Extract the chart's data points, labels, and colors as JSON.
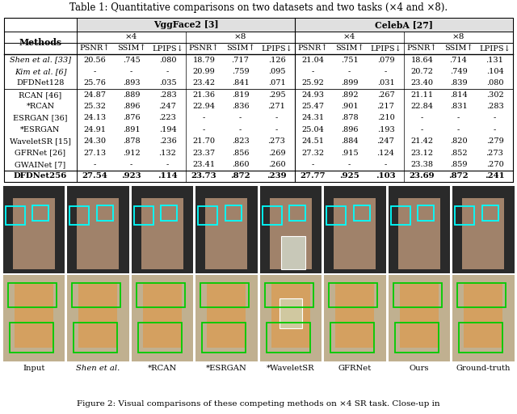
{
  "title": "Table 1: Quantitative comparisons on two datasets and two tasks (×4 and ×8).",
  "vggface2_label": "VggFace2 [3]",
  "celeba_label": "CelebA [27]",
  "x4_label": "×4",
  "x8_label": "×8",
  "metric_headers": [
    "PSNR↑",
    "SSIM↑",
    "LPIPS↓"
  ],
  "methods_label": "Methods",
  "rows": [
    {
      "method": "Shen et al. [33]",
      "italic": true,
      "vgg_x4": [
        "20.56",
        ".745",
        ".080"
      ],
      "vgg_x8": [
        "18.79",
        ".717",
        ".126"
      ],
      "celeb_x4": [
        "21.04",
        ".751",
        ".079"
      ],
      "celeb_x8": [
        "18.64",
        ".714",
        ".131"
      ],
      "bold": false,
      "group": 1
    },
    {
      "method": "Kim et al. [6]",
      "italic": true,
      "vgg_x4": [
        "-",
        "-",
        "-"
      ],
      "vgg_x8": [
        "20.99",
        ".759",
        ".095"
      ],
      "celeb_x4": [
        "-",
        "-",
        "-"
      ],
      "celeb_x8": [
        "20.72",
        ".749",
        ".104"
      ],
      "bold": false,
      "group": 1
    },
    {
      "method": "DFDNet128",
      "italic": false,
      "vgg_x4": [
        "25.76",
        ".893",
        ".035"
      ],
      "vgg_x8": [
        "23.42",
        ".841",
        ".071"
      ],
      "celeb_x4": [
        "25.92",
        ".899",
        ".031"
      ],
      "celeb_x8": [
        "23.40",
        ".839",
        ".080"
      ],
      "bold": false,
      "group": 1
    },
    {
      "method": "RCAN [46]",
      "italic": false,
      "vgg_x4": [
        "24.87",
        ".889",
        ".283"
      ],
      "vgg_x8": [
        "21.36",
        ".819",
        ".295"
      ],
      "celeb_x4": [
        "24.93",
        ".892",
        ".267"
      ],
      "celeb_x8": [
        "21.11",
        ".814",
        ".302"
      ],
      "bold": false,
      "group": 2
    },
    {
      "method": "*RCAN",
      "italic": false,
      "vgg_x4": [
        "25.32",
        ".896",
        ".247"
      ],
      "vgg_x8": [
        "22.94",
        ".836",
        ".271"
      ],
      "celeb_x4": [
        "25.47",
        ".901",
        ".217"
      ],
      "celeb_x8": [
        "22.84",
        ".831",
        ".283"
      ],
      "bold": false,
      "group": 2
    },
    {
      "method": "ESRGAN [36]",
      "italic": false,
      "vgg_x4": [
        "24.13",
        ".876",
        ".223"
      ],
      "vgg_x8": [
        "-",
        "-",
        "-"
      ],
      "celeb_x4": [
        "24.31",
        ".878",
        ".210"
      ],
      "celeb_x8": [
        "-",
        "-",
        "-"
      ],
      "bold": false,
      "group": 2
    },
    {
      "method": "*ESRGAN",
      "italic": false,
      "vgg_x4": [
        "24.91",
        ".891",
        ".194"
      ],
      "vgg_x8": [
        "-",
        "-",
        "-"
      ],
      "celeb_x4": [
        "25.04",
        ".896",
        ".193"
      ],
      "celeb_x8": [
        "-",
        "-",
        "-"
      ],
      "bold": false,
      "group": 2
    },
    {
      "method": "WaveletSR [15]",
      "italic": false,
      "vgg_x4": [
        "24.30",
        ".878",
        ".236"
      ],
      "vgg_x8": [
        "21.70",
        ".823",
        ".273"
      ],
      "celeb_x4": [
        "24.51",
        ".884",
        ".247"
      ],
      "celeb_x8": [
        "21.42",
        ".820",
        ".279"
      ],
      "bold": false,
      "group": 2
    },
    {
      "method": "GFRNet [26]",
      "italic": false,
      "vgg_x4": [
        "27.13",
        ".912",
        ".132"
      ],
      "vgg_x8": [
        "23.37",
        ".856",
        ".269"
      ],
      "celeb_x4": [
        "27.32",
        ".915",
        ".124"
      ],
      "celeb_x8": [
        "23.12",
        ".852",
        ".273"
      ],
      "bold": false,
      "group": 2
    },
    {
      "method": "GWAINet [7]",
      "italic": false,
      "vgg_x4": [
        "-",
        "-",
        "-"
      ],
      "vgg_x8": [
        "23.41",
        ".860",
        ".260"
      ],
      "celeb_x4": [
        "-",
        "-",
        "-"
      ],
      "celeb_x8": [
        "23.38",
        ".859",
        ".270"
      ],
      "bold": false,
      "group": 2
    },
    {
      "method": "DFDNet256",
      "italic": false,
      "vgg_x4": [
        "27.54",
        ".923",
        ".114"
      ],
      "vgg_x8": [
        "23.73",
        ".872",
        ".239"
      ],
      "celeb_x4": [
        "27.77",
        ".925",
        ".103"
      ],
      "celeb_x8": [
        "23.69",
        ".872",
        ".241"
      ],
      "bold": true,
      "group": 3
    }
  ],
  "figure_caption": "Figure 2: Visual comparisons of these competing methods on ×4 SR task. Close-up in",
  "image_labels": [
    "Input",
    "Shen et al.",
    "*RCAN",
    "*ESRGAN",
    "*WaveletSR",
    "GFRNet",
    "Ours",
    "Ground-truth"
  ],
  "image_label_italic": [
    false,
    true,
    false,
    false,
    false,
    false,
    false,
    false
  ],
  "bg_color": "#ffffff"
}
